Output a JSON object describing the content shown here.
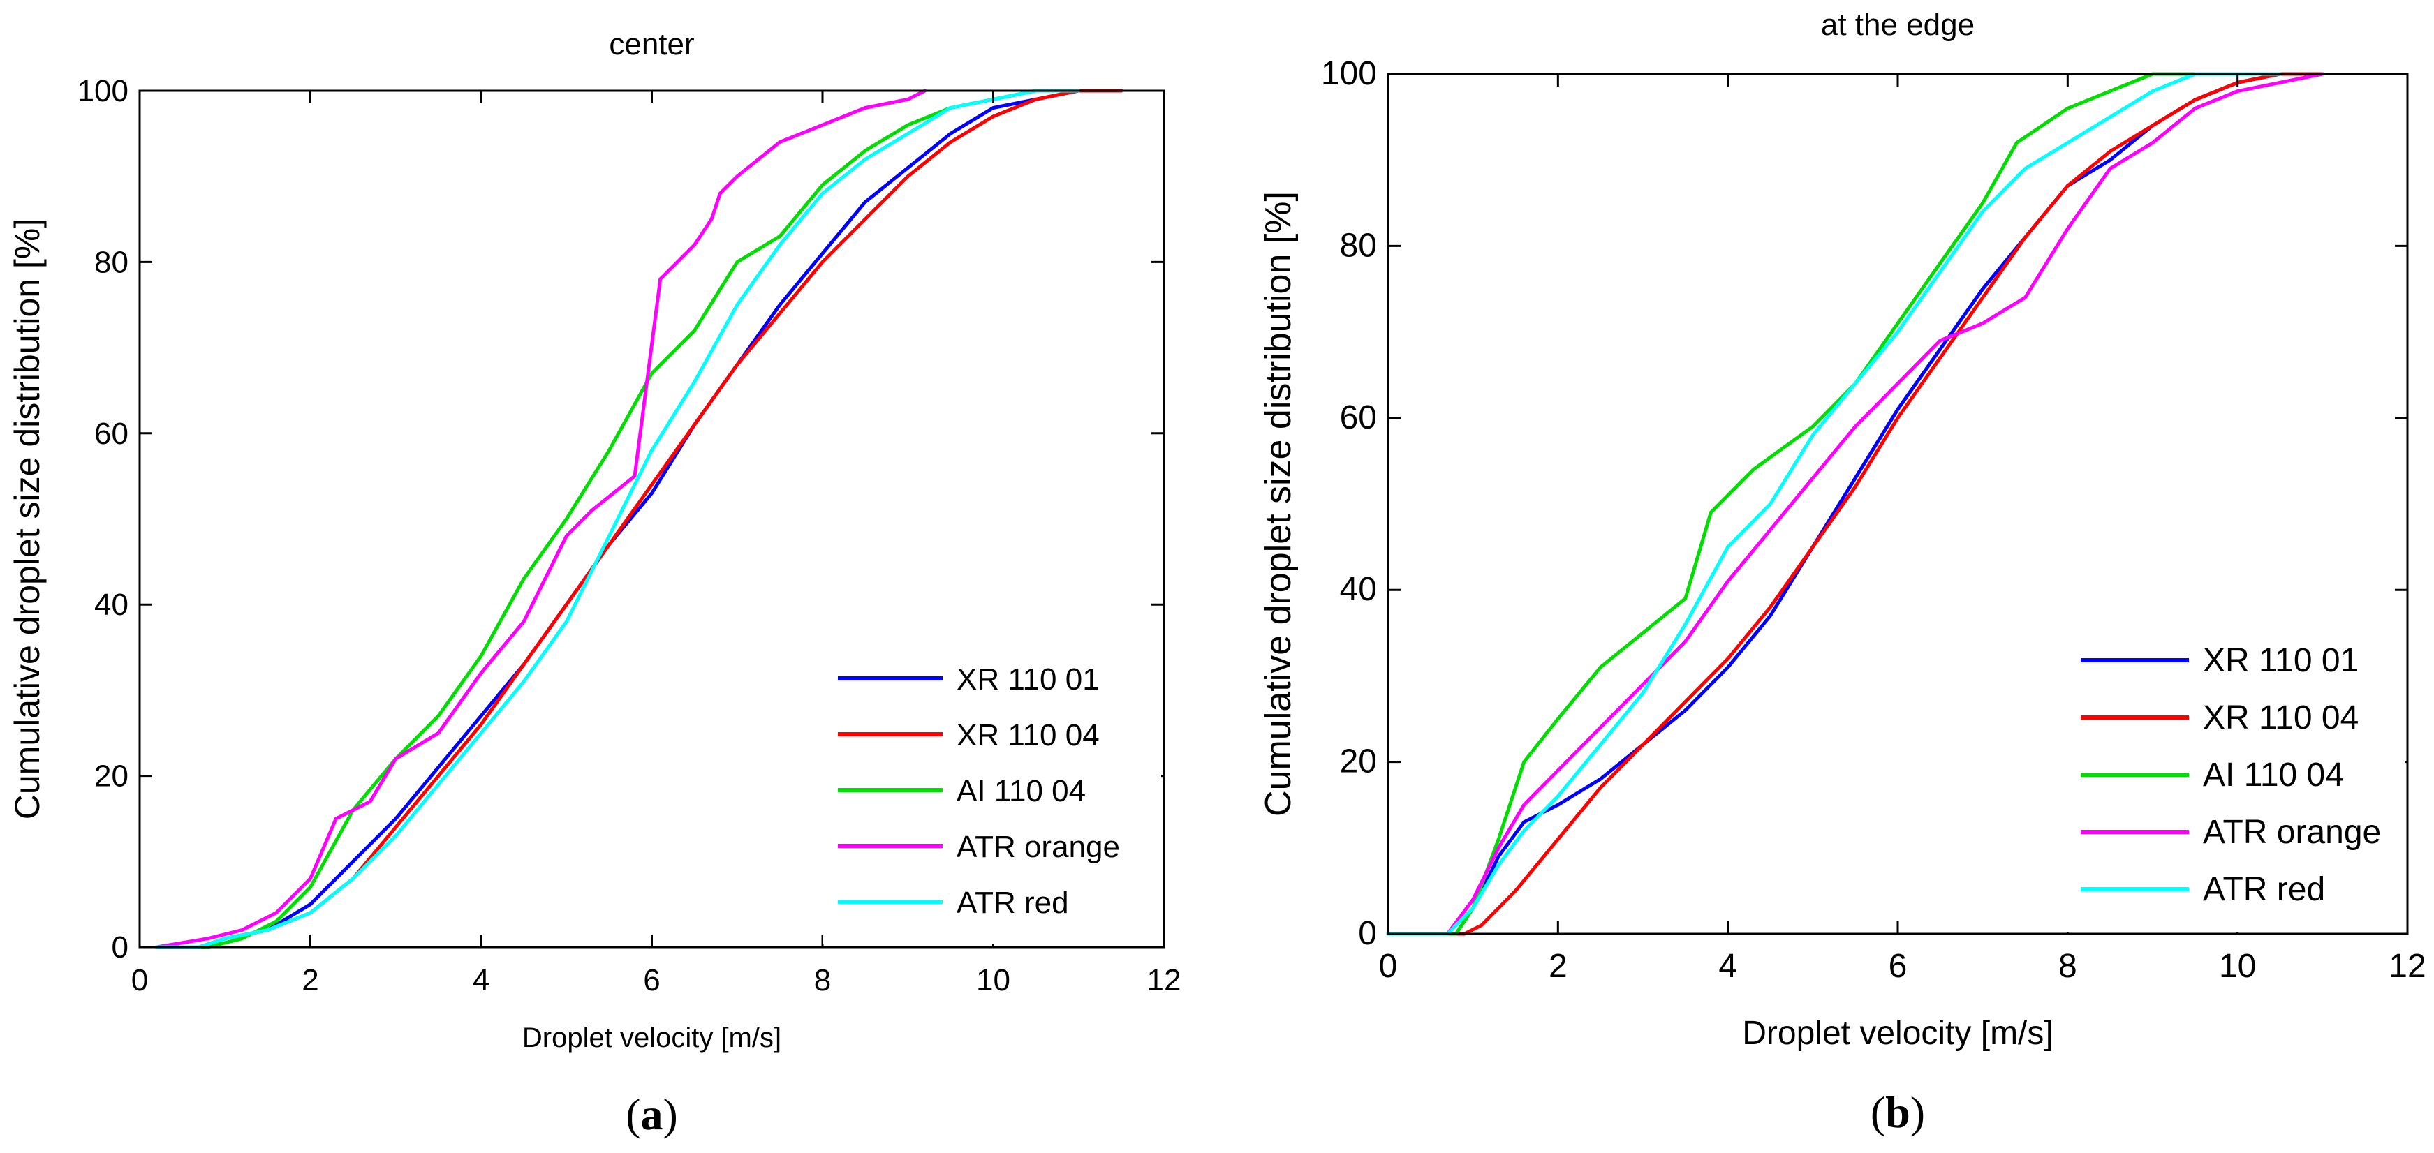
{
  "chart_data": [
    {
      "type": "line",
      "panel": "a",
      "panel_label": "(a)",
      "panel_letter": "a",
      "title": "center",
      "xlabel": "Droplet velocity [m/s]",
      "ylabel": "Cumulative droplet size distribution [%]",
      "xlim": [
        0,
        12
      ],
      "ylim": [
        0,
        100
      ],
      "xticks": [
        "0",
        "2",
        "4",
        "6",
        "8",
        "10",
        "12"
      ],
      "yticks": [
        "0",
        "20",
        "40",
        "60",
        "80",
        "100"
      ],
      "grid": false,
      "legend_position": "bottom-right",
      "series": [
        {
          "name": "XR 110 01",
          "color": "#0000ff",
          "x": [
            0.2,
            0.7,
            1.0,
            1.5,
            2.0,
            2.5,
            3.0,
            3.5,
            4.0,
            4.5,
            5.0,
            5.5,
            6.0,
            6.5,
            7.0,
            7.5,
            8.0,
            8.5,
            9.0,
            9.5,
            10.0,
            10.5,
            11.0,
            11.5
          ],
          "y": [
            0,
            0,
            1,
            2,
            5,
            10,
            15,
            21,
            27,
            33,
            40,
            47,
            53,
            61,
            68,
            75,
            81,
            87,
            91,
            95,
            98,
            99,
            100,
            100
          ]
        },
        {
          "name": "XR 110 04",
          "color": "#ff0000",
          "x": [
            0.2,
            0.7,
            1.0,
            1.5,
            2.0,
            2.5,
            3.0,
            3.5,
            4.0,
            4.5,
            5.0,
            5.5,
            6.0,
            6.5,
            7.0,
            7.5,
            8.0,
            8.5,
            9.0,
            9.5,
            10.0,
            10.5,
            11.0,
            11.5
          ],
          "y": [
            0,
            0,
            1,
            2,
            4,
            8,
            14,
            20,
            26,
            33,
            40,
            47,
            54,
            61,
            68,
            74,
            80,
            85,
            90,
            94,
            97,
            99,
            100,
            100
          ]
        },
        {
          "name": "AI 110 04",
          "color": "#00dd00",
          "x": [
            0.2,
            0.8,
            1.2,
            1.6,
            2.0,
            2.5,
            3.0,
            3.5,
            4.0,
            4.5,
            5.0,
            5.5,
            6.0,
            6.5,
            7.0,
            7.5,
            8.0,
            8.5,
            9.0,
            9.5,
            10.0,
            10.5,
            11.0
          ],
          "y": [
            0,
            0,
            1,
            3,
            7,
            16,
            22,
            27,
            34,
            43,
            50,
            58,
            67,
            72,
            80,
            83,
            89,
            93,
            96,
            98,
            99,
            100,
            100
          ]
        },
        {
          "name": "ATR orange",
          "color": "#ff00ff",
          "x": [
            0.2,
            0.8,
            1.2,
            1.6,
            2.0,
            2.3,
            2.7,
            3.0,
            3.5,
            4.0,
            4.5,
            5.0,
            5.3,
            5.8,
            6.1,
            6.5,
            6.7,
            6.8,
            7.0,
            7.5,
            8.0,
            8.5,
            9.0,
            9.2
          ],
          "y": [
            0,
            1,
            2,
            4,
            8,
            15,
            17,
            22,
            25,
            32,
            38,
            48,
            51,
            55,
            78,
            82,
            85,
            88,
            90,
            94,
            96,
            98,
            99,
            100
          ]
        },
        {
          "name": "ATR red",
          "color": "#00ffff",
          "x": [
            0.2,
            0.7,
            1.0,
            1.5,
            2.0,
            2.5,
            3.0,
            3.5,
            4.0,
            4.5,
            5.0,
            5.5,
            6.0,
            6.5,
            7.0,
            7.5,
            8.0,
            8.5,
            9.0,
            9.5,
            10.0,
            10.5,
            11.0
          ],
          "y": [
            0,
            0,
            1,
            2,
            4,
            8,
            13,
            19,
            25,
            31,
            38,
            48,
            58,
            66,
            75,
            82,
            88,
            92,
            95,
            98,
            99,
            100,
            100
          ]
        }
      ]
    },
    {
      "type": "line",
      "panel": "b",
      "panel_label": "(b)",
      "panel_letter": "b",
      "title": "at the edge",
      "xlabel": "Droplet velocity [m/s]",
      "ylabel": "Cumulative droplet size distribution [%]",
      "xlim": [
        0,
        12
      ],
      "ylim": [
        0,
        100
      ],
      "xticks": [
        "0",
        "2",
        "4",
        "6",
        "8",
        "10",
        "12"
      ],
      "yticks": [
        "0",
        "20",
        "40",
        "60",
        "80",
        "100"
      ],
      "grid": false,
      "legend_position": "bottom-right",
      "series": [
        {
          "name": "XR 110 01",
          "color": "#0000ff",
          "x": [
            0,
            0.8,
            1.0,
            1.3,
            1.6,
            2.0,
            2.5,
            3.0,
            3.5,
            4.0,
            4.5,
            5.0,
            5.5,
            6.0,
            6.5,
            7.0,
            7.5,
            8.0,
            8.5,
            9.0,
            9.5,
            10.0,
            10.5,
            11.0
          ],
          "y": [
            0,
            0,
            3,
            9,
            13,
            15,
            18,
            22,
            26,
            31,
            37,
            45,
            53,
            61,
            68,
            75,
            81,
            87,
            90,
            94,
            97,
            99,
            100,
            100
          ]
        },
        {
          "name": "XR 110 04",
          "color": "#ff0000",
          "x": [
            0,
            0.9,
            1.1,
            1.5,
            2.0,
            2.5,
            3.0,
            3.5,
            4.0,
            4.5,
            5.0,
            5.5,
            6.0,
            6.5,
            7.0,
            7.5,
            8.0,
            8.5,
            9.0,
            9.5,
            10.0,
            10.5,
            11.0
          ],
          "y": [
            0,
            0,
            1,
            5,
            11,
            17,
            22,
            27,
            32,
            38,
            45,
            52,
            60,
            67,
            74,
            81,
            87,
            91,
            94,
            97,
            99,
            100,
            100
          ]
        },
        {
          "name": "AI 110 04",
          "color": "#00dd00",
          "x": [
            0,
            0.8,
            1.0,
            1.3,
            1.6,
            2.0,
            2.5,
            3.0,
            3.5,
            3.8,
            4.3,
            5.0,
            5.5,
            6.0,
            6.5,
            7.0,
            7.4,
            8.0,
            8.5,
            9.0,
            9.5
          ],
          "y": [
            0,
            0,
            3,
            11,
            20,
            25,
            31,
            35,
            39,
            49,
            54,
            59,
            64,
            71,
            78,
            85,
            92,
            96,
            98,
            100,
            100
          ]
        },
        {
          "name": "ATR orange",
          "color": "#ff00ff",
          "x": [
            0,
            0.7,
            1.0,
            1.3,
            1.6,
            2.0,
            2.5,
            3.0,
            3.5,
            4.0,
            4.5,
            5.0,
            5.5,
            6.0,
            6.5,
            7.0,
            7.5,
            8.0,
            8.5,
            9.0,
            9.5,
            10.0,
            10.5,
            11.0
          ],
          "y": [
            0,
            0,
            4,
            10,
            15,
            19,
            24,
            29,
            34,
            41,
            47,
            53,
            59,
            64,
            69,
            71,
            74,
            82,
            89,
            92,
            96,
            98,
            99,
            100
          ]
        },
        {
          "name": "ATR red",
          "color": "#00ffff",
          "x": [
            0,
            0.7,
            1.0,
            1.3,
            1.6,
            2.0,
            2.5,
            3.0,
            3.5,
            4.0,
            4.5,
            5.0,
            5.5,
            6.0,
            6.5,
            7.0,
            7.5,
            8.0,
            8.5,
            9.0,
            9.5,
            10.0,
            10.5
          ],
          "y": [
            0,
            0,
            3,
            8,
            12,
            16,
            22,
            28,
            36,
            45,
            50,
            58,
            64,
            70,
            77,
            84,
            89,
            92,
            95,
            98,
            100,
            100,
            100
          ]
        }
      ]
    }
  ]
}
